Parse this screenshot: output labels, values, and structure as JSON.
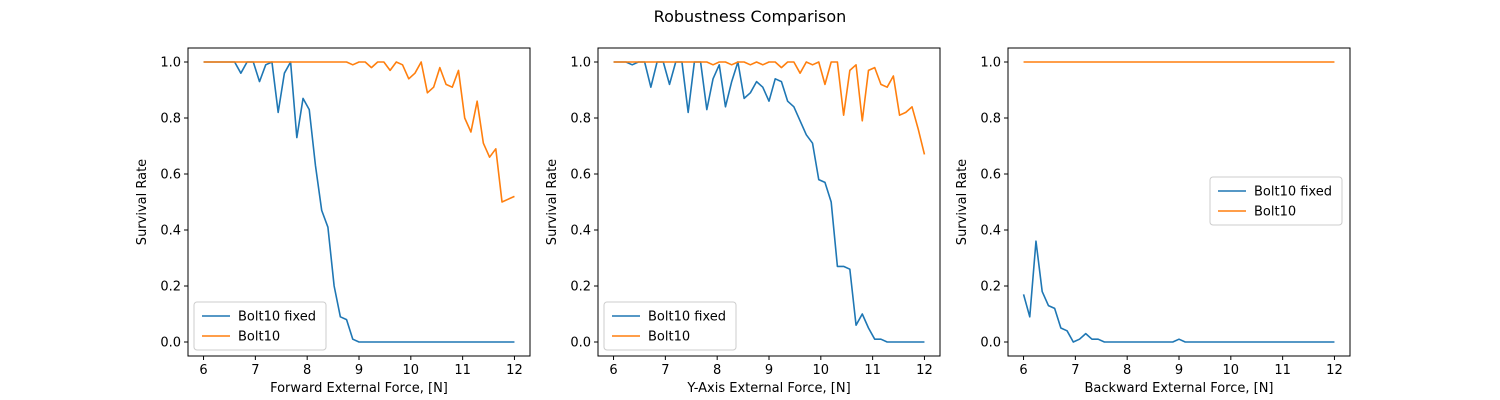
{
  "figure": {
    "title": "Robustness Comparison"
  },
  "chart_data": [
    {
      "type": "line",
      "xlabel": "Forward External Force, [N]",
      "ylabel": "Survival Rate",
      "xlim": [
        5.7,
        12.3
      ],
      "ylim": [
        -0.05,
        1.05
      ],
      "xticks": [
        6,
        7,
        8,
        9,
        10,
        11,
        12
      ],
      "yticks": [
        0.0,
        0.2,
        0.4,
        0.6,
        0.8,
        1.0
      ],
      "legend": "lower-left",
      "series": [
        {
          "name": "Bolt10 fixed",
          "color": "#1f77b4",
          "x": [
            6.0,
            6.12,
            6.24,
            6.36,
            6.48,
            6.6,
            6.72,
            6.84,
            6.96,
            7.08,
            7.2,
            7.32,
            7.44,
            7.56,
            7.68,
            7.8,
            7.92,
            8.04,
            8.16,
            8.28,
            8.4,
            8.52,
            8.64,
            8.76,
            8.88,
            9.0,
            9.12,
            9.24,
            9.36,
            9.48,
            9.6,
            9.72,
            9.84,
            9.96,
            10.08,
            10.2,
            10.32,
            10.44,
            10.56,
            10.68,
            10.8,
            10.92,
            11.04,
            11.16,
            11.28,
            11.4,
            11.52,
            11.64,
            11.76,
            11.88,
            12.0
          ],
          "y": [
            1.0,
            1.0,
            1.0,
            1.0,
            1.0,
            1.0,
            0.96,
            1.0,
            1.0,
            0.93,
            0.99,
            1.0,
            0.82,
            0.96,
            1.0,
            0.73,
            0.87,
            0.83,
            0.63,
            0.47,
            0.41,
            0.2,
            0.09,
            0.08,
            0.01,
            0.0,
            0.0,
            0.0,
            0.0,
            0.0,
            0.0,
            0.0,
            0.0,
            0.0,
            0.0,
            0.0,
            0.0,
            0.0,
            0.0,
            0.0,
            0.0,
            0.0,
            0.0,
            0.0,
            0.0,
            0.0,
            0.0,
            0.0,
            0.0,
            0.0,
            0.0
          ]
        },
        {
          "name": "Bolt10",
          "color": "#ff7f0e",
          "x": [
            6.0,
            6.12,
            6.24,
            6.36,
            6.48,
            6.6,
            6.72,
            6.84,
            6.96,
            7.08,
            7.2,
            7.32,
            7.44,
            7.56,
            7.68,
            7.8,
            7.92,
            8.04,
            8.16,
            8.28,
            8.4,
            8.52,
            8.64,
            8.76,
            8.88,
            9.0,
            9.12,
            9.24,
            9.36,
            9.48,
            9.6,
            9.72,
            9.84,
            9.96,
            10.08,
            10.2,
            10.32,
            10.44,
            10.56,
            10.68,
            10.8,
            10.92,
            11.04,
            11.16,
            11.28,
            11.4,
            11.52,
            11.64,
            11.76,
            11.88,
            12.0
          ],
          "y": [
            1.0,
            1.0,
            1.0,
            1.0,
            1.0,
            1.0,
            1.0,
            1.0,
            1.0,
            1.0,
            1.0,
            1.0,
            1.0,
            1.0,
            1.0,
            1.0,
            1.0,
            1.0,
            1.0,
            1.0,
            1.0,
            1.0,
            1.0,
            1.0,
            0.99,
            1.0,
            1.0,
            0.98,
            1.0,
            1.0,
            0.97,
            1.0,
            0.99,
            0.94,
            0.96,
            1.0,
            0.89,
            0.91,
            0.98,
            0.92,
            0.91,
            0.97,
            0.8,
            0.75,
            0.86,
            0.71,
            0.66,
            0.69,
            0.5,
            0.51,
            0.52
          ]
        }
      ]
    },
    {
      "type": "line",
      "xlabel": "Y-Axis External Force, [N]",
      "ylabel": "Survival Rate",
      "xlim": [
        5.7,
        12.3
      ],
      "ylim": [
        -0.05,
        1.05
      ],
      "xticks": [
        6,
        7,
        8,
        9,
        10,
        11,
        12
      ],
      "yticks": [
        0.0,
        0.2,
        0.4,
        0.6,
        0.8,
        1.0
      ],
      "legend": "lower-left",
      "series": [
        {
          "name": "Bolt10 fixed",
          "color": "#1f77b4",
          "x": [
            6.0,
            6.12,
            6.24,
            6.36,
            6.48,
            6.6,
            6.72,
            6.84,
            6.96,
            7.08,
            7.2,
            7.32,
            7.44,
            7.56,
            7.68,
            7.8,
            7.92,
            8.04,
            8.16,
            8.28,
            8.4,
            8.52,
            8.64,
            8.76,
            8.88,
            9.0,
            9.12,
            9.24,
            9.36,
            9.48,
            9.6,
            9.72,
            9.84,
            9.96,
            10.08,
            10.2,
            10.32,
            10.44,
            10.56,
            10.68,
            10.8,
            10.92,
            11.04,
            11.16,
            11.28,
            11.4,
            11.52,
            11.64,
            11.76,
            11.88,
            12.0
          ],
          "y": [
            1.0,
            1.0,
            1.0,
            0.99,
            1.0,
            1.0,
            0.91,
            1.0,
            1.0,
            0.92,
            1.0,
            1.0,
            0.82,
            1.0,
            1.0,
            0.83,
            0.94,
            0.99,
            0.84,
            0.93,
            1.0,
            0.87,
            0.89,
            0.93,
            0.91,
            0.86,
            0.94,
            0.93,
            0.86,
            0.84,
            0.79,
            0.74,
            0.71,
            0.58,
            0.57,
            0.5,
            0.27,
            0.27,
            0.26,
            0.06,
            0.1,
            0.05,
            0.01,
            0.01,
            0.0,
            0.0,
            0.0,
            0.0,
            0.0,
            0.0,
            0.0
          ]
        },
        {
          "name": "Bolt10",
          "color": "#ff7f0e",
          "x": [
            6.0,
            6.12,
            6.24,
            6.36,
            6.48,
            6.6,
            6.72,
            6.84,
            6.96,
            7.08,
            7.2,
            7.32,
            7.44,
            7.56,
            7.68,
            7.8,
            7.92,
            8.04,
            8.16,
            8.28,
            8.4,
            8.52,
            8.64,
            8.76,
            8.88,
            9.0,
            9.12,
            9.24,
            9.36,
            9.48,
            9.6,
            9.72,
            9.84,
            9.96,
            10.08,
            10.2,
            10.32,
            10.44,
            10.56,
            10.68,
            10.8,
            10.92,
            11.04,
            11.16,
            11.28,
            11.4,
            11.52,
            11.64,
            11.76,
            11.88,
            12.0
          ],
          "y": [
            1.0,
            1.0,
            1.0,
            1.0,
            1.0,
            1.0,
            1.0,
            1.0,
            1.0,
            1.0,
            1.0,
            1.0,
            1.0,
            1.0,
            1.0,
            1.0,
            0.99,
            1.0,
            1.0,
            0.99,
            1.0,
            1.0,
            0.99,
            1.0,
            0.99,
            1.0,
            1.0,
            0.98,
            1.0,
            1.0,
            0.96,
            1.0,
            0.99,
            1.0,
            0.92,
            1.0,
            1.0,
            0.81,
            0.97,
            0.99,
            0.79,
            0.97,
            0.98,
            0.92,
            0.91,
            0.95,
            0.81,
            0.82,
            0.84,
            0.76,
            0.67
          ]
        }
      ]
    },
    {
      "type": "line",
      "xlabel": "Backward External Force, [N]",
      "ylabel": "Survival Rate",
      "xlim": [
        5.7,
        12.3
      ],
      "ylim": [
        -0.05,
        1.05
      ],
      "xticks": [
        6,
        7,
        8,
        9,
        10,
        11,
        12
      ],
      "yticks": [
        0.0,
        0.2,
        0.4,
        0.6,
        0.8,
        1.0
      ],
      "legend": "center-right",
      "series": [
        {
          "name": "Bolt10 fixed",
          "color": "#1f77b4",
          "x": [
            6.0,
            6.12,
            6.24,
            6.36,
            6.48,
            6.6,
            6.72,
            6.84,
            6.96,
            7.08,
            7.2,
            7.32,
            7.44,
            7.56,
            7.68,
            7.8,
            7.92,
            8.04,
            8.16,
            8.28,
            8.4,
            8.52,
            8.64,
            8.76,
            8.88,
            9.0,
            9.12,
            9.24,
            9.36,
            9.48,
            9.6,
            9.72,
            9.84,
            9.96,
            10.08,
            10.2,
            10.32,
            10.44,
            10.56,
            10.68,
            10.8,
            10.92,
            11.04,
            11.16,
            11.28,
            11.4,
            11.52,
            11.64,
            11.76,
            11.88,
            12.0
          ],
          "y": [
            0.17,
            0.09,
            0.36,
            0.18,
            0.13,
            0.12,
            0.05,
            0.04,
            0.0,
            0.01,
            0.03,
            0.01,
            0.01,
            0.0,
            0.0,
            0.0,
            0.0,
            0.0,
            0.0,
            0.0,
            0.0,
            0.0,
            0.0,
            0.0,
            0.0,
            0.01,
            0.0,
            0.0,
            0.0,
            0.0,
            0.0,
            0.0,
            0.0,
            0.0,
            0.0,
            0.0,
            0.0,
            0.0,
            0.0,
            0.0,
            0.0,
            0.0,
            0.0,
            0.0,
            0.0,
            0.0,
            0.0,
            0.0,
            0.0,
            0.0,
            0.0
          ]
        },
        {
          "name": "Bolt10",
          "color": "#ff7f0e",
          "x": [
            6.0,
            12.0
          ],
          "y": [
            1.0,
            1.0
          ]
        }
      ]
    }
  ]
}
